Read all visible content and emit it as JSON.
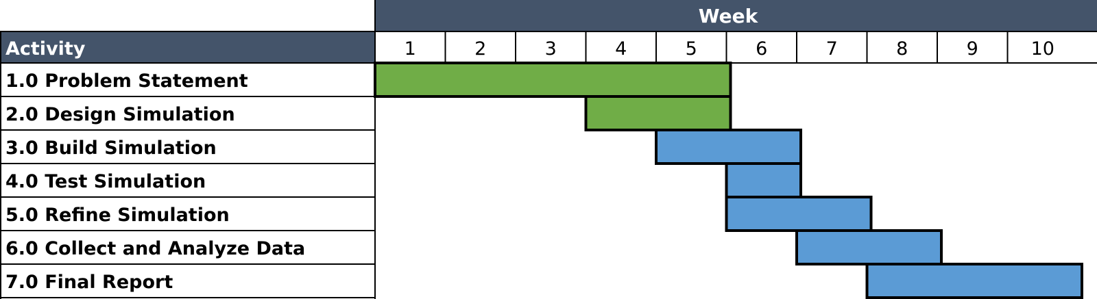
{
  "chart_data": {
    "type": "gantt",
    "week_header": "Week",
    "activity_header": "Activity",
    "weeks": [
      "1",
      "2",
      "3",
      "4",
      "5",
      "6",
      "7",
      "8",
      "9",
      "10"
    ],
    "tasks": [
      {
        "label": "1.0 Problem Statement",
        "start_week": 1,
        "end_week": 5,
        "color": "#70ad47"
      },
      {
        "label": "2.0 Design Simulation",
        "start_week": 4,
        "end_week": 5,
        "color": "#70ad47"
      },
      {
        "label": "3.0 Build Simulation",
        "start_week": 5,
        "end_week": 6,
        "color": "#5b9bd5"
      },
      {
        "label": "4.0 Test Simulation",
        "start_week": 6,
        "end_week": 6,
        "color": "#5b9bd5"
      },
      {
        "label": "5.0 Refine Simulation",
        "start_week": 6,
        "end_week": 7,
        "color": "#5b9bd5"
      },
      {
        "label": "6.0 Collect and Analyze Data",
        "start_week": 7,
        "end_week": 8,
        "color": "#5b9bd5"
      },
      {
        "label": "7.0 Final Report",
        "start_week": 8,
        "end_week": 10,
        "color": "#5b9bd5"
      }
    ],
    "header_color": "#44546a"
  }
}
